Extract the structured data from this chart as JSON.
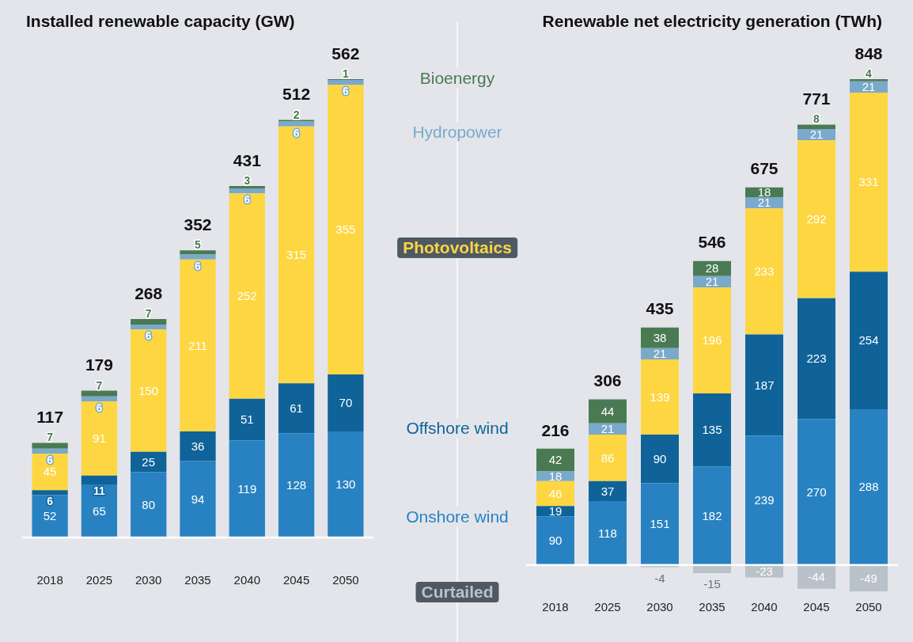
{
  "chart_data": [
    {
      "type": "bar",
      "title": "Installed renewable capacity (GW)",
      "categories": [
        "2018",
        "2025",
        "2030",
        "2035",
        "2040",
        "2045",
        "2050"
      ],
      "stacked": true,
      "data_labels": true,
      "ylim": [
        0,
        562
      ],
      "series": [
        {
          "color": "#2882c2",
          "values": [
            52,
            65,
            80,
            94,
            119,
            128,
            130
          ]
        },
        {
          "color": "#0f6399",
          "values": [
            6,
            11,
            25,
            36,
            51,
            61,
            70
          ]
        },
        {
          "color": "#fdd642",
          "values": [
            45,
            91,
            150,
            211,
            252,
            315,
            355
          ]
        },
        {
          "color": "#7aa9cb",
          "values": [
            6,
            6,
            6,
            6,
            6,
            6,
            6
          ]
        },
        {
          "color": "#4a7a52",
          "values": [
            7,
            7,
            7,
            5,
            3,
            2,
            1
          ]
        }
      ],
      "totals": [
        "117",
        "179",
        "268",
        "352",
        "431",
        "512",
        "562"
      ]
    },
    {
      "type": "bar",
      "title": "Renewable net electricity generation (TWh)",
      "categories": [
        "2018",
        "2025",
        "2030",
        "2035",
        "2040",
        "2045",
        "2050"
      ],
      "stacked": true,
      "data_labels": true,
      "legend": "left",
      "ylim": [
        -49,
        898
      ],
      "series": [
        {
          "name": "Onshore wind",
          "color": "#2882c2",
          "values": [
            90,
            118,
            151,
            182,
            239,
            270,
            288
          ]
        },
        {
          "name": "Offshore wind",
          "color": "#0f6399",
          "values": [
            19,
            37,
            90,
            135,
            187,
            223,
            254
          ]
        },
        {
          "name": "Photovoltaics",
          "color": "#fdd642",
          "values": [
            46,
            86,
            139,
            196,
            233,
            292,
            331
          ]
        },
        {
          "name": "Hydropower",
          "color": "#7aa9cb",
          "values": [
            18,
            21,
            21,
            21,
            21,
            21,
            21
          ]
        },
        {
          "name": "Bioenergy",
          "color": "#4a7a52",
          "values": [
            42,
            44,
            38,
            28,
            18,
            8,
            4
          ]
        },
        {
          "name": "Curtailed",
          "color": "#b9c1c9",
          "values": [
            null,
            null,
            -4,
            -15,
            -23,
            -44,
            -49
          ]
        }
      ],
      "totals": [
        "216",
        "306",
        "435",
        "546",
        "675",
        "771",
        "848"
      ]
    }
  ]
}
